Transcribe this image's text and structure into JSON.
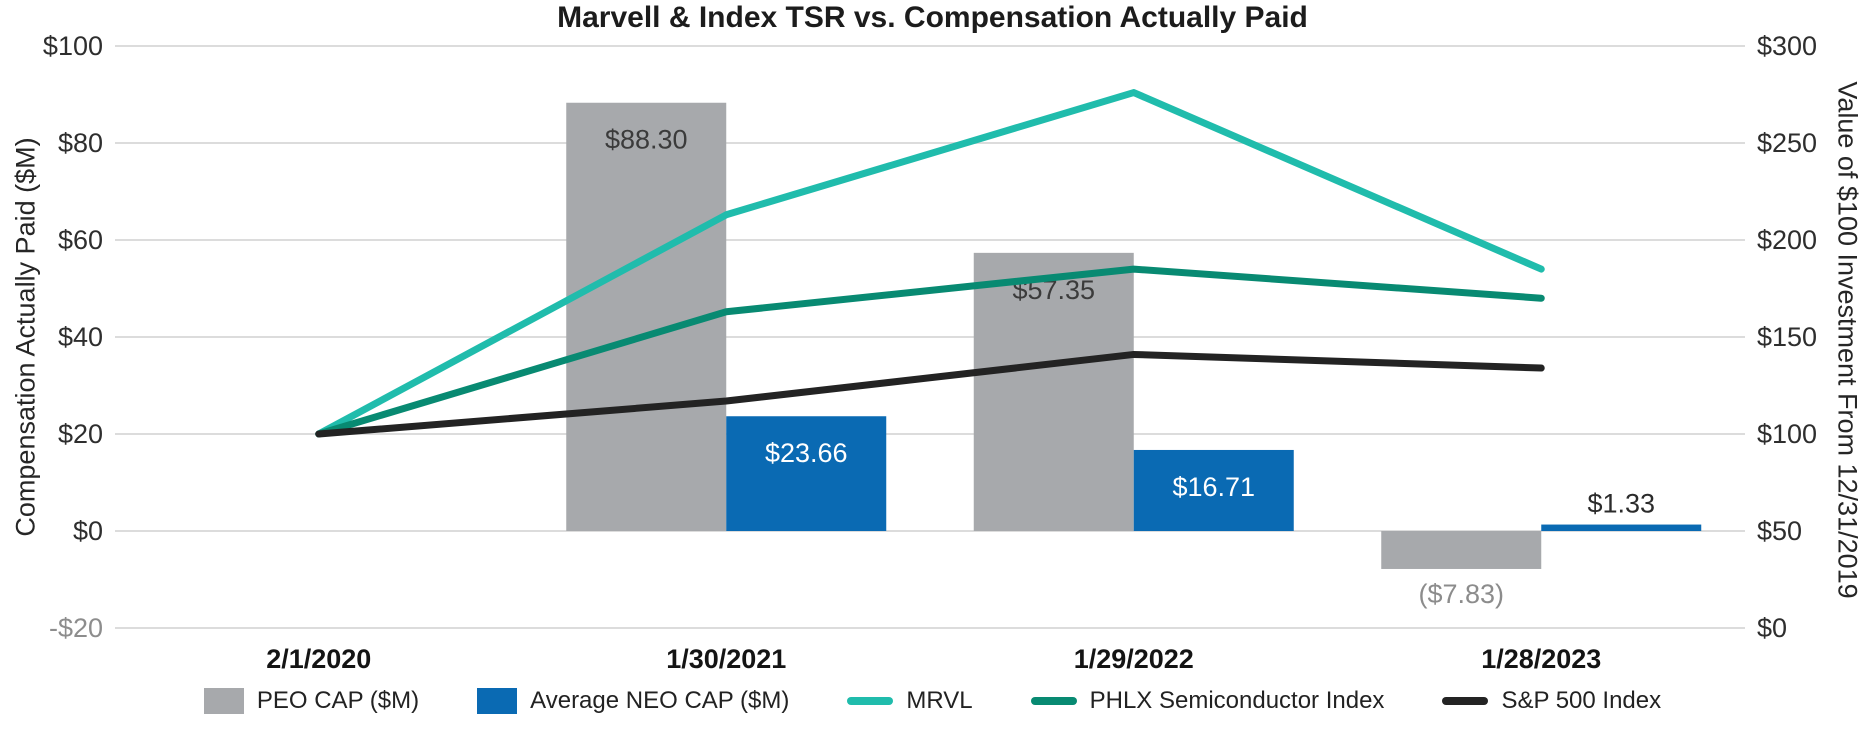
{
  "title": "Marvell & Index TSR vs. Compensation Actually Paid",
  "chart_data": {
    "type": "combo (bar + line)",
    "categories": [
      "2/1/2020",
      "1/30/2021",
      "1/29/2022",
      "1/28/2023"
    ],
    "bar_series": [
      {
        "name": "PEO CAP ($M)",
        "color": "#A7A9AC",
        "axis": "left",
        "values": [
          null,
          88.3,
          57.35,
          -7.83
        ],
        "labels": [
          "",
          "$88.30",
          "$57.35",
          "($7.83)"
        ]
      },
      {
        "name": "Average NEO CAP ($M)",
        "color": "#0A6AB3",
        "axis": "left",
        "values": [
          null,
          23.66,
          16.71,
          1.33
        ],
        "labels": [
          "",
          "$23.66",
          "$16.71",
          "$1.33"
        ]
      }
    ],
    "line_series": [
      {
        "name": "MRVL",
        "color": "#20BCAC",
        "axis": "right",
        "values": [
          100,
          213,
          276,
          185
        ]
      },
      {
        "name": "PHLX Semiconductor Index",
        "color": "#088A72",
        "axis": "right",
        "values": [
          100,
          163,
          185,
          170
        ]
      },
      {
        "name": "S&P 500 Index",
        "color": "#232323",
        "axis": "right",
        "values": [
          100,
          117,
          141,
          134
        ]
      }
    ],
    "left_axis": {
      "label": "Compensation Actually Paid ($M)",
      "min": -20,
      "max": 100,
      "step": 20,
      "ticks": [
        "$100",
        "$80",
        "$60",
        "$40",
        "$20",
        "$0",
        "-$20"
      ]
    },
    "right_axis": {
      "label": "Value of $100 Investment From 12/31/2019",
      "min": 0,
      "max": 300,
      "step": 50,
      "ticks": [
        "$300",
        "$250",
        "$200",
        "$150",
        "$100",
        "$50",
        "$0"
      ]
    },
    "grid": true,
    "legend_position": "bottom",
    "colors": {
      "gridline": "#DCDCDC",
      "negative_tick": "#8D8D8D",
      "bar_label_dark": "#3B3B3B",
      "bar_label_light": "#FFFFFF",
      "bar_label_negative": "#8C8C8C"
    }
  }
}
